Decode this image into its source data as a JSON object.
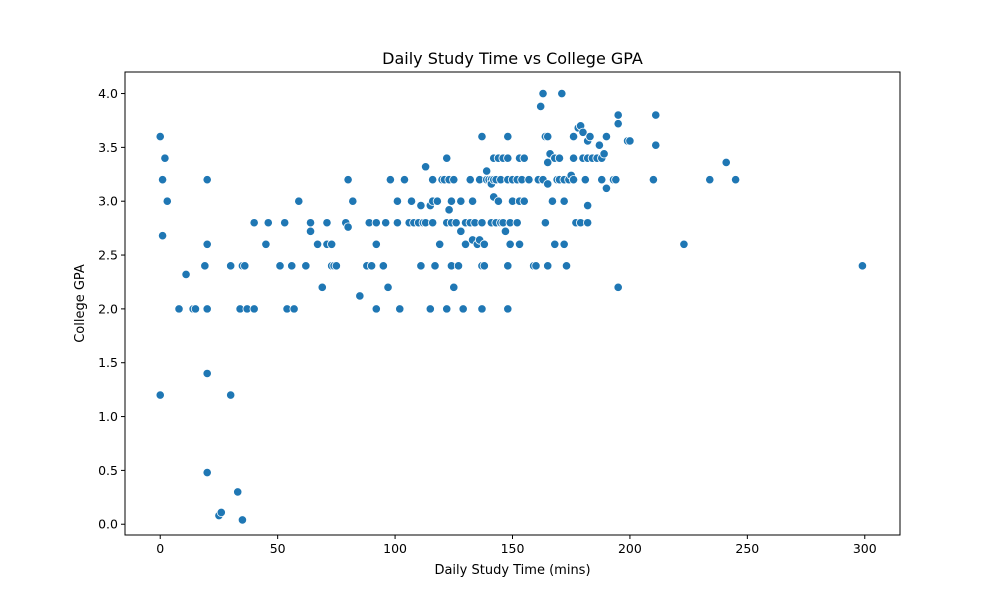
{
  "chart_data": {
    "type": "scatter",
    "title": "Daily Study Time vs College GPA",
    "xlabel": "Daily Study Time (mins)",
    "ylabel": "College GPA",
    "xlim": [
      -15,
      315
    ],
    "ylim": [
      -0.1,
      4.2
    ],
    "xticks": [
      0,
      50,
      100,
      150,
      200,
      250,
      300
    ],
    "yticks": [
      0.0,
      0.5,
      1.0,
      1.5,
      2.0,
      2.5,
      3.0,
      3.5,
      4.0
    ],
    "ytick_labels": [
      "0.0",
      "0.5",
      "1.0",
      "1.5",
      "2.0",
      "2.5",
      "3.0",
      "3.5",
      "4.0"
    ],
    "grid": false,
    "legend": "none",
    "marker_color": "#1f77b4",
    "marker_edge": "#ffffff",
    "points": [
      [
        0,
        3.6
      ],
      [
        1,
        3.2
      ],
      [
        2,
        3.4
      ],
      [
        3,
        3.0
      ],
      [
        1,
        2.68
      ],
      [
        0,
        1.2
      ],
      [
        8,
        2.0
      ],
      [
        11,
        2.32
      ],
      [
        14,
        2.0
      ],
      [
        15,
        2.0
      ],
      [
        19,
        2.4
      ],
      [
        20,
        3.2
      ],
      [
        20,
        2.6
      ],
      [
        20,
        2.0
      ],
      [
        20,
        1.4
      ],
      [
        20,
        0.48
      ],
      [
        25,
        0.08
      ],
      [
        26,
        0.11
      ],
      [
        30,
        2.4
      ],
      [
        30,
        1.2
      ],
      [
        33,
        0.3
      ],
      [
        34,
        2.0
      ],
      [
        35,
        2.4
      ],
      [
        35,
        0.04
      ],
      [
        36,
        2.4
      ],
      [
        37,
        2.0
      ],
      [
        40,
        2.0
      ],
      [
        40,
        2.8
      ],
      [
        45,
        2.6
      ],
      [
        46,
        2.8
      ],
      [
        51,
        2.4
      ],
      [
        53,
        2.8
      ],
      [
        54,
        2.0
      ],
      [
        56,
        2.4
      ],
      [
        57,
        2.0
      ],
      [
        59,
        3.0
      ],
      [
        62,
        2.4
      ],
      [
        64,
        2.8
      ],
      [
        64,
        2.72
      ],
      [
        67,
        2.6
      ],
      [
        69,
        2.2
      ],
      [
        71,
        2.6
      ],
      [
        71,
        2.8
      ],
      [
        73,
        2.4
      ],
      [
        73,
        2.6
      ],
      [
        74,
        2.4
      ],
      [
        75,
        2.4
      ],
      [
        79,
        2.8
      ],
      [
        80,
        3.2
      ],
      [
        80,
        2.76
      ],
      [
        82,
        3.0
      ],
      [
        85,
        2.12
      ],
      [
        88,
        2.4
      ],
      [
        89,
        2.8
      ],
      [
        90,
        2.4
      ],
      [
        92,
        2.8
      ],
      [
        92,
        2.0
      ],
      [
        92,
        2.6
      ],
      [
        95,
        2.4
      ],
      [
        96,
        2.8
      ],
      [
        97,
        2.2
      ],
      [
        98,
        3.2
      ],
      [
        101,
        3.0
      ],
      [
        101,
        2.8
      ],
      [
        102,
        2.0
      ],
      [
        104,
        3.2
      ],
      [
        106,
        2.8
      ],
      [
        107,
        3.0
      ],
      [
        108,
        2.8
      ],
      [
        110,
        2.8
      ],
      [
        111,
        2.4
      ],
      [
        111,
        2.96
      ],
      [
        112,
        2.8
      ],
      [
        113,
        3.32
      ],
      [
        113,
        2.8
      ],
      [
        115,
        2.96
      ],
      [
        115,
        2.0
      ],
      [
        116,
        3.0
      ],
      [
        116,
        3.2
      ],
      [
        116,
        2.8
      ],
      [
        117,
        2.4
      ],
      [
        118,
        3.0
      ],
      [
        119,
        2.6
      ],
      [
        120,
        3.2
      ],
      [
        121,
        3.2
      ],
      [
        122,
        2.0
      ],
      [
        122,
        2.8
      ],
      [
        122,
        3.4
      ],
      [
        123,
        2.92
      ],
      [
        123,
        3.2
      ],
      [
        124,
        3.0
      ],
      [
        124,
        2.8
      ],
      [
        124,
        2.4
      ],
      [
        125,
        2.2
      ],
      [
        125,
        3.2
      ],
      [
        126,
        2.8
      ],
      [
        127,
        2.4
      ],
      [
        128,
        3.0
      ],
      [
        128,
        2.72
      ],
      [
        129,
        2.0
      ],
      [
        130,
        2.6
      ],
      [
        130,
        2.8
      ],
      [
        132,
        3.2
      ],
      [
        132,
        2.8
      ],
      [
        133,
        2.64
      ],
      [
        133,
        3.0
      ],
      [
        134,
        2.8
      ],
      [
        135,
        2.6
      ],
      [
        136,
        2.64
      ],
      [
        136,
        3.2
      ],
      [
        137,
        3.6
      ],
      [
        137,
        2.8
      ],
      [
        137,
        2.4
      ],
      [
        137,
        2.0
      ],
      [
        138,
        2.6
      ],
      [
        138,
        2.4
      ],
      [
        139,
        3.2
      ],
      [
        139,
        3.28
      ],
      [
        140,
        3.2
      ],
      [
        141,
        2.8
      ],
      [
        141,
        3.2
      ],
      [
        141,
        3.16
      ],
      [
        142,
        3.2
      ],
      [
        142,
        3.04
      ],
      [
        142,
        3.4
      ],
      [
        143,
        2.8
      ],
      [
        143,
        3.2
      ],
      [
        144,
        3.0
      ],
      [
        144,
        3.4
      ],
      [
        145,
        2.8
      ],
      [
        145,
        3.2
      ],
      [
        146,
        3.4
      ],
      [
        146,
        2.8
      ],
      [
        147,
        2.72
      ],
      [
        148,
        3.2
      ],
      [
        148,
        2.4
      ],
      [
        148,
        2.0
      ],
      [
        148,
        3.6
      ],
      [
        148,
        3.4
      ],
      [
        149,
        2.6
      ],
      [
        149,
        2.8
      ],
      [
        150,
        3.0
      ],
      [
        150,
        3.2
      ],
      [
        152,
        2.8
      ],
      [
        152,
        3.2
      ],
      [
        153,
        3.4
      ],
      [
        153,
        3.0
      ],
      [
        153,
        2.6
      ],
      [
        154,
        3.2
      ],
      [
        155,
        3.0
      ],
      [
        155,
        3.4
      ],
      [
        157,
        3.2
      ],
      [
        159,
        2.4
      ],
      [
        160,
        2.4
      ],
      [
        161,
        3.2
      ],
      [
        162,
        3.88
      ],
      [
        163,
        4.0
      ],
      [
        163,
        3.2
      ],
      [
        164,
        3.6
      ],
      [
        164,
        2.8
      ],
      [
        165,
        3.6
      ],
      [
        165,
        3.16
      ],
      [
        165,
        2.4
      ],
      [
        165,
        3.36
      ],
      [
        166,
        3.44
      ],
      [
        167,
        3.0
      ],
      [
        168,
        2.6
      ],
      [
        168,
        3.4
      ],
      [
        169,
        3.2
      ],
      [
        170,
        3.2
      ],
      [
        170,
        3.4
      ],
      [
        171,
        4.0
      ],
      [
        172,
        3.2
      ],
      [
        172,
        3.0
      ],
      [
        172,
        2.6
      ],
      [
        173,
        2.4
      ],
      [
        174,
        3.2
      ],
      [
        175,
        3.24
      ],
      [
        176,
        3.2
      ],
      [
        176,
        3.6
      ],
      [
        176,
        3.4
      ],
      [
        177,
        2.8
      ],
      [
        178,
        3.68
      ],
      [
        179,
        3.7
      ],
      [
        179,
        2.8
      ],
      [
        180,
        3.64
      ],
      [
        180,
        3.4
      ],
      [
        181,
        3.2
      ],
      [
        182,
        2.96
      ],
      [
        182,
        2.8
      ],
      [
        182,
        3.56
      ],
      [
        182,
        3.4
      ],
      [
        183,
        3.6
      ],
      [
        184,
        3.4
      ],
      [
        186,
        3.4
      ],
      [
        187,
        3.52
      ],
      [
        188,
        3.4
      ],
      [
        188,
        3.2
      ],
      [
        189,
        3.44
      ],
      [
        190,
        3.6
      ],
      [
        190,
        3.12
      ],
      [
        193,
        3.2
      ],
      [
        194,
        3.2
      ],
      [
        195,
        3.8
      ],
      [
        195,
        3.72
      ],
      [
        195,
        2.2
      ],
      [
        199,
        3.56
      ],
      [
        200,
        3.56
      ],
      [
        210,
        3.2
      ],
      [
        211,
        3.8
      ],
      [
        211,
        3.52
      ],
      [
        223,
        2.6
      ],
      [
        234,
        3.2
      ],
      [
        241,
        3.36
      ],
      [
        245,
        3.2
      ],
      [
        299,
        2.4
      ]
    ]
  }
}
